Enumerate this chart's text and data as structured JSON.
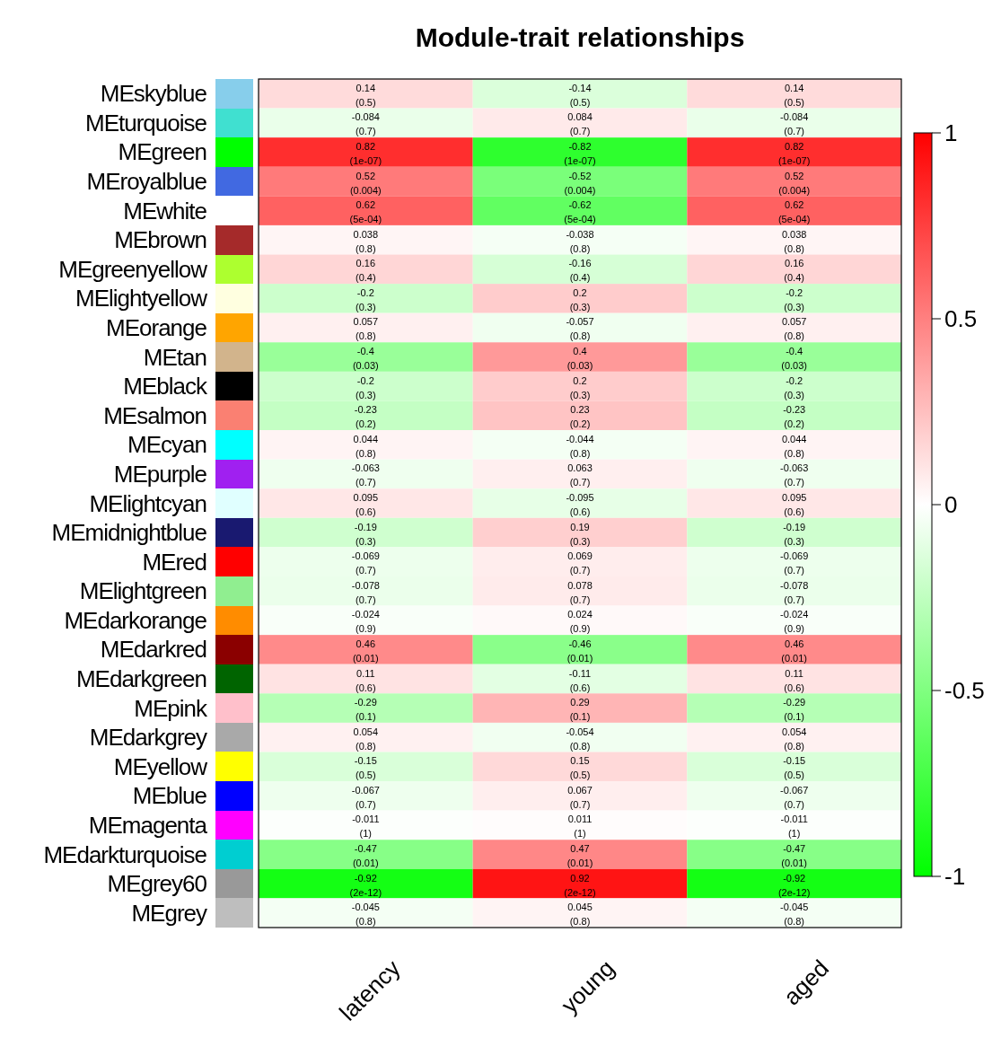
{
  "chart_data": {
    "type": "heatmap",
    "title": "Module-trait relationships",
    "categories": [
      "latency",
      "young",
      "aged"
    ],
    "y_categories": [
      "MEskyblue",
      "MEturquoise",
      "MEgreen",
      "MEroyalblue",
      "MEwhite",
      "MEbrown",
      "MEgreenyellow",
      "MElightyellow",
      "MEorange",
      "MEtan",
      "MEblack",
      "MEsalmon",
      "MEcyan",
      "MEpurple",
      "MElightcyan",
      "MEmidnightblue",
      "MEred",
      "MElightgreen",
      "MEdarkorange",
      "MEdarkred",
      "MEdarkgreen",
      "MEpink",
      "MEdarkgrey",
      "MEyellow",
      "MEblue",
      "MEmagenta",
      "MEdarkturquoise",
      "MEgrey60",
      "MEgrey"
    ],
    "colors": [
      "#87ceeb",
      "#40e0d0",
      "#00ff00",
      "#4169e1",
      "#ffffff",
      "#a52a2a",
      "#adff2f",
      "#ffffe0",
      "#ffa500",
      "#d2b48c",
      "#000000",
      "#fa8072",
      "#00ffff",
      "#a020f0",
      "#e0ffff",
      "#191970",
      "#ff0000",
      "#90ee90",
      "#ff8c00",
      "#8b0000",
      "#006400",
      "#ffc0cb",
      "#a9a9a9",
      "#ffff00",
      "#0000ff",
      "#ff00ff",
      "#00ced1",
      "#999999",
      "#bebebe"
    ],
    "cells": [
      [
        0.14,
        -0.14,
        0.14
      ],
      [
        -0.084,
        0.084,
        -0.084
      ],
      [
        0.82,
        -0.82,
        0.82
      ],
      [
        0.52,
        -0.52,
        0.52
      ],
      [
        0.62,
        -0.62,
        0.62
      ],
      [
        0.038,
        -0.038,
        0.038
      ],
      [
        0.16,
        -0.16,
        0.16
      ],
      [
        -0.2,
        0.2,
        -0.2
      ],
      [
        0.057,
        -0.057,
        0.057
      ],
      [
        -0.4,
        0.4,
        -0.4
      ],
      [
        -0.2,
        0.2,
        -0.2
      ],
      [
        -0.23,
        0.23,
        -0.23
      ],
      [
        0.044,
        -0.044,
        0.044
      ],
      [
        -0.063,
        0.063,
        -0.063
      ],
      [
        0.095,
        -0.095,
        0.095
      ],
      [
        -0.19,
        0.19,
        -0.19
      ],
      [
        -0.069,
        0.069,
        -0.069
      ],
      [
        -0.078,
        0.078,
        -0.078
      ],
      [
        -0.024,
        0.024,
        -0.024
      ],
      [
        0.46,
        -0.46,
        0.46
      ],
      [
        0.11,
        -0.11,
        0.11
      ],
      [
        -0.29,
        0.29,
        -0.29
      ],
      [
        0.054,
        -0.054,
        0.054
      ],
      [
        -0.15,
        0.15,
        -0.15
      ],
      [
        -0.067,
        0.067,
        -0.067
      ],
      [
        -0.011,
        0.011,
        -0.011
      ],
      [
        -0.47,
        0.47,
        -0.47
      ],
      [
        -0.92,
        0.92,
        -0.92
      ],
      [
        -0.045,
        0.045,
        -0.045
      ]
    ],
    "cell_labels": [
      [
        "0.14\n(0.5)",
        "-0.14\n(0.5)",
        "0.14\n(0.5)"
      ],
      [
        "-0.084\n(0.7)",
        "0.084\n(0.7)",
        "-0.084\n(0.7)"
      ],
      [
        "0.82\n(1e-07)",
        "-0.82\n(1e-07)",
        "0.82\n(1e-07)"
      ],
      [
        "0.52\n(0.004)",
        "-0.52\n(0.004)",
        "0.52\n(0.004)"
      ],
      [
        "0.62\n(5e-04)",
        "-0.62\n(5e-04)",
        "0.62\n(5e-04)"
      ],
      [
        "0.038\n(0.8)",
        "-0.038\n(0.8)",
        "0.038\n(0.8)"
      ],
      [
        "0.16\n(0.4)",
        "-0.16\n(0.4)",
        "0.16\n(0.4)"
      ],
      [
        "-0.2\n(0.3)",
        "0.2\n(0.3)",
        "-0.2\n(0.3)"
      ],
      [
        "0.057\n(0.8)",
        "-0.057\n(0.8)",
        "0.057\n(0.8)"
      ],
      [
        "-0.4\n(0.03)",
        "0.4\n(0.03)",
        "-0.4\n(0.03)"
      ],
      [
        "-0.2\n(0.3)",
        "0.2\n(0.3)",
        "-0.2\n(0.3)"
      ],
      [
        "-0.23\n(0.2)",
        "0.23\n(0.2)",
        "-0.23\n(0.2)"
      ],
      [
        "0.044\n(0.8)",
        "-0.044\n(0.8)",
        "0.044\n(0.8)"
      ],
      [
        "-0.063\n(0.7)",
        "0.063\n(0.7)",
        "-0.063\n(0.7)"
      ],
      [
        "0.095\n(0.6)",
        "-0.095\n(0.6)",
        "0.095\n(0.6)"
      ],
      [
        "-0.19\n(0.3)",
        "0.19\n(0.3)",
        "-0.19\n(0.3)"
      ],
      [
        "-0.069\n(0.7)",
        "0.069\n(0.7)",
        "-0.069\n(0.7)"
      ],
      [
        "-0.078\n(0.7)",
        "0.078\n(0.7)",
        "-0.078\n(0.7)"
      ],
      [
        "-0.024\n(0.9)",
        "0.024\n(0.9)",
        "-0.024\n(0.9)"
      ],
      [
        "0.46\n(0.01)",
        "-0.46\n(0.01)",
        "0.46\n(0.01)"
      ],
      [
        "0.11\n(0.6)",
        "-0.11\n(0.6)",
        "0.11\n(0.6)"
      ],
      [
        "-0.29\n(0.1)",
        "0.29\n(0.1)",
        "-0.29\n(0.1)"
      ],
      [
        "0.054\n(0.8)",
        "-0.054\n(0.8)",
        "0.054\n(0.8)"
      ],
      [
        "-0.15\n(0.5)",
        "0.15\n(0.5)",
        "-0.15\n(0.5)"
      ],
      [
        "-0.067\n(0.7)",
        "0.067\n(0.7)",
        "-0.067\n(0.7)"
      ],
      [
        "-0.011\n(1)",
        "0.011\n(1)",
        "-0.011\n(1)"
      ],
      [
        "-0.47\n(0.01)",
        "0.47\n(0.01)",
        "-0.47\n(0.01)"
      ],
      [
        "-0.92\n(2e-12)",
        "0.92\n(2e-12)",
        "-0.92\n(2e-12)"
      ],
      [
        "-0.045\n(0.8)",
        "0.045\n(0.8)",
        "-0.045\n(0.8)"
      ]
    ],
    "clim": [
      -1,
      1
    ],
    "cticks": [
      -1,
      -0.5,
      0,
      0.5,
      1
    ]
  }
}
